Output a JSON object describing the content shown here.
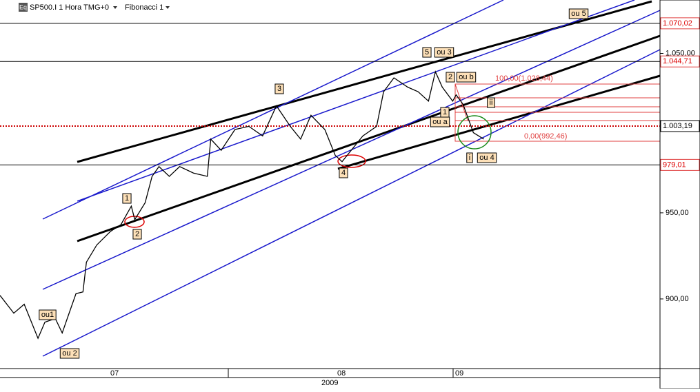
{
  "header": {
    "symbol": "SP500.I 1 Hora TMG+0",
    "study": "Fibonacci 1",
    "icon": "Eq"
  },
  "chart_data": {
    "type": "line",
    "log_scale": true,
    "color": "#000000",
    "x": [
      0,
      4,
      7,
      11,
      13,
      16,
      18,
      20,
      22,
      24,
      25,
      28,
      32,
      35,
      38,
      39,
      42,
      44,
      46,
      49,
      52,
      56,
      60,
      61,
      64,
      68,
      72,
      76,
      80,
      84,
      87,
      90,
      94,
      97,
      99,
      102,
      105,
      109,
      111,
      114,
      118,
      121,
      124,
      126,
      128,
      131,
      132,
      134,
      137,
      140
    ],
    "values": [
      902,
      892,
      897,
      878,
      887,
      889,
      881,
      892,
      903,
      904,
      921,
      931,
      939,
      943,
      954,
      946,
      956,
      972,
      978,
      972,
      978,
      974,
      972,
      995,
      988,
      1001,
      1003,
      997,
      1016,
      1003,
      995,
      1010,
      1001,
      985,
      981,
      989,
      997,
      1003,
      1025,
      1034,
      1028,
      1025,
      1019,
      1038,
      1028,
      1019,
      1023,
      1017,
      999,
      995
    ],
    "xlim": [
      0,
      191
    ],
    "ylim": [
      861.5,
      1085.8
    ],
    "yticks": [
      {
        "value": 900,
        "label": "900,00"
      },
      {
        "value": 950,
        "label": "950,00"
      },
      {
        "value": 1050,
        "label": "1.050,00"
      }
    ],
    "levels": [
      {
        "value": 1070.02,
        "label": "1.070,02"
      },
      {
        "value": 1044.71,
        "label": "1.044,71"
      },
      {
        "value": 979.01,
        "label": "979,01"
      },
      {
        "value": 1003.19,
        "label": "1.003,19"
      }
    ],
    "xlabels": [
      "07",
      "08",
      "09"
    ],
    "year": "2009",
    "fib": [
      "100,00(1.028,44)",
      "0,00(992,46)"
    ],
    "annotations": [
      "ou 5",
      "5",
      "ou 3",
      "3",
      "2",
      "ou b",
      "ii",
      "1",
      "ou a",
      "i",
      "ou 4",
      "4",
      "1",
      "2",
      "ou1",
      "ou 2"
    ]
  }
}
